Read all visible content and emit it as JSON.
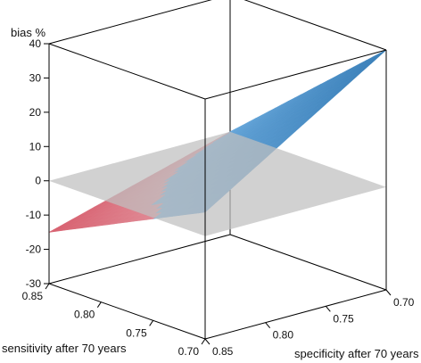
{
  "chart_data": {
    "type": "surface",
    "title": "",
    "zlabel": "bias %",
    "xlabel": "sensitivity after 70 years",
    "ylabel": "specificity after 70 years",
    "x_ticks": [
      "0.85",
      "0.80",
      "0.75",
      "0.70"
    ],
    "y_ticks": [
      "0.85",
      "0.80",
      "0.75",
      "0.70"
    ],
    "z_ticks": [
      "40",
      "30",
      "20",
      "10",
      "0",
      "-10",
      "-20",
      "-30"
    ],
    "xlim": [
      0.7,
      0.85
    ],
    "ylim": [
      0.7,
      0.85
    ],
    "zlim": [
      -30,
      40
    ],
    "corners": [
      {
        "sensitivity": 0.85,
        "specificity": 0.85,
        "bias": -15
      },
      {
        "sensitivity": 0.85,
        "specificity": 0.7,
        "bias": 0
      },
      {
        "sensitivity": 0.7,
        "specificity": 0.85,
        "bias": 7
      },
      {
        "sensitivity": 0.7,
        "specificity": 0.7,
        "bias": 40
      }
    ],
    "reference_plane": {
      "bias": 0
    },
    "colors": {
      "positive": "#4a8fc8",
      "negative": "#d84555",
      "reference_plane": "#bfbfbf"
    }
  }
}
